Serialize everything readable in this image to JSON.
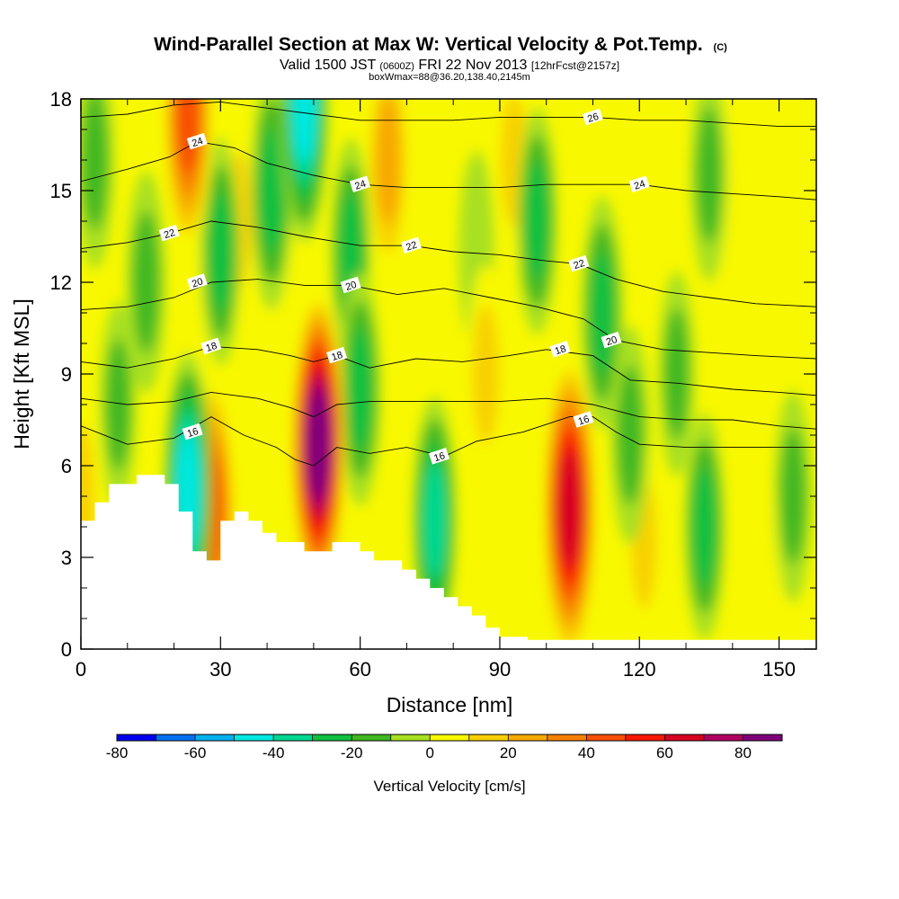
{
  "chart_data": {
    "type": "heatmap",
    "title": "Wind-Parallel Section at Max W: Vertical Velocity & Pot.Temp.",
    "title_mark": "(C)",
    "subtitle_parts": [
      "Valid 1500 JST",
      "(0600Z)",
      "FRI 22 Nov 2013",
      "[12hrFcst@2157z]"
    ],
    "subtitle2": "boxWmax=88@36.20,138.40,2145m",
    "xlabel": "Distance [nm]",
    "ylabel": "Height [Kft MSL]",
    "xlim": [
      0,
      158
    ],
    "ylim": [
      0,
      18
    ],
    "x_ticks": [
      0,
      30,
      60,
      90,
      120,
      150
    ],
    "y_ticks": [
      0,
      3,
      6,
      9,
      12,
      15,
      18
    ],
    "x_tick_labels": [
      "0",
      "30",
      "60",
      "90",
      "120",
      "150"
    ],
    "y_tick_labels": [
      "0",
      "3",
      "6",
      "9",
      "12",
      "15",
      "18"
    ],
    "colorbar": {
      "label": "Vertical Velocity [cm/s]",
      "levels": [
        -80,
        -70,
        -60,
        -50,
        -40,
        -30,
        -20,
        -10,
        0,
        10,
        20,
        30,
        40,
        50,
        60,
        70,
        80,
        90
      ],
      "tick_values": [
        -80,
        -60,
        -40,
        -20,
        0,
        20,
        40,
        60,
        80
      ],
      "tick_labels": [
        "-80",
        "-60",
        "-40",
        "-20",
        "0",
        "20",
        "40",
        "60",
        "80"
      ],
      "colors": [
        "#0000f0",
        "#0070f0",
        "#00b0f0",
        "#00e8e0",
        "#00d890",
        "#10c040",
        "#40b820",
        "#a8e020",
        "#f8f800",
        "#f8d000",
        "#f8a800",
        "#f88000",
        "#f85000",
        "#f81800",
        "#d80020",
        "#b00060",
        "#80007a"
      ]
    },
    "vertical_velocity_cores": [
      {
        "x": 51,
        "y": 6.7,
        "w": 88
      },
      {
        "x": 105,
        "y": 4.6,
        "w": 62
      },
      {
        "x": 23,
        "y": 17.5,
        "w": 48
      },
      {
        "x": 34,
        "y": 14,
        "w": 15
      },
      {
        "x": 66,
        "y": 16,
        "w": 30
      },
      {
        "x": 28,
        "y": 4.5,
        "w": 45
      },
      {
        "x": 87,
        "y": 9,
        "w": 18
      },
      {
        "x": 121,
        "y": 3.5,
        "w": 12
      },
      {
        "x": 147,
        "y": 2,
        "w": 8
      },
      {
        "x": 0,
        "y": 5,
        "w": 20
      },
      {
        "x": 93,
        "y": 16,
        "w": 14
      },
      {
        "x": 140,
        "y": 15,
        "w": 10
      },
      {
        "x": 44,
        "y": 12,
        "w": 5
      },
      {
        "x": 25,
        "y": 10,
        "w": 8
      },
      {
        "x": 23,
        "y": 5.2,
        "w": -45
      },
      {
        "x": 48,
        "y": 17.8,
        "w": -45
      },
      {
        "x": 76,
        "y": 4.2,
        "w": -32
      },
      {
        "x": 60,
        "y": 8.5,
        "w": -25
      },
      {
        "x": 30,
        "y": 13,
        "w": -22
      },
      {
        "x": 41,
        "y": 15,
        "w": -28
      },
      {
        "x": 58,
        "y": 13,
        "w": -22
      },
      {
        "x": 14,
        "y": 12,
        "w": -20
      },
      {
        "x": 3,
        "y": 16,
        "w": -18
      },
      {
        "x": 98,
        "y": 14,
        "w": -22
      },
      {
        "x": 112,
        "y": 11,
        "w": -25
      },
      {
        "x": 118,
        "y": 7,
        "w": -18
      },
      {
        "x": 135,
        "y": 15.5,
        "w": -15
      },
      {
        "x": 134,
        "y": 4,
        "w": -22
      },
      {
        "x": 153,
        "y": 5,
        "w": -15
      },
      {
        "x": 128,
        "y": 9,
        "w": -12
      },
      {
        "x": 85,
        "y": 13,
        "w": -10
      },
      {
        "x": 8,
        "y": 8,
        "w": -12
      }
    ],
    "terrain_surface": [
      [
        0,
        4.2
      ],
      [
        3,
        4.2
      ],
      [
        3,
        4.8
      ],
      [
        6,
        4.8
      ],
      [
        6,
        5.4
      ],
      [
        12,
        5.4
      ],
      [
        12,
        5.7
      ],
      [
        18,
        5.7
      ],
      [
        18,
        5.4
      ],
      [
        21,
        5.4
      ],
      [
        21,
        4.5
      ],
      [
        24,
        4.5
      ],
      [
        24,
        3.2
      ],
      [
        27,
        3.2
      ],
      [
        27,
        2.9
      ],
      [
        30,
        2.9
      ],
      [
        30,
        4.2
      ],
      [
        33,
        4.2
      ],
      [
        33,
        4.5
      ],
      [
        36,
        4.5
      ],
      [
        36,
        4.2
      ],
      [
        39,
        4.2
      ],
      [
        39,
        3.8
      ],
      [
        42,
        3.8
      ],
      [
        42,
        3.5
      ],
      [
        48,
        3.5
      ],
      [
        48,
        3.2
      ],
      [
        54,
        3.2
      ],
      [
        54,
        3.5
      ],
      [
        60,
        3.5
      ],
      [
        60,
        3.2
      ],
      [
        63,
        3.2
      ],
      [
        63,
        2.9
      ],
      [
        69,
        2.9
      ],
      [
        69,
        2.6
      ],
      [
        72,
        2.6
      ],
      [
        72,
        2.3
      ],
      [
        75,
        2.3
      ],
      [
        75,
        2.0
      ],
      [
        78,
        2.0
      ],
      [
        78,
        1.7
      ],
      [
        81,
        1.7
      ],
      [
        81,
        1.4
      ],
      [
        84,
        1.4
      ],
      [
        84,
        1.1
      ],
      [
        87,
        1.1
      ],
      [
        87,
        0.7
      ],
      [
        90,
        0.7
      ],
      [
        90,
        0.4
      ],
      [
        96,
        0.4
      ],
      [
        96,
        0.3
      ],
      [
        158,
        0.3
      ]
    ],
    "potential_temperature_contours": [
      {
        "level": "16",
        "labels": [
          {
            "x": 24,
            "y": 7.1
          },
          {
            "x": 77,
            "y": 6.3
          },
          {
            "x": 108,
            "y": 7.5
          }
        ],
        "points": [
          [
            0,
            7.3
          ],
          [
            10,
            6.7
          ],
          [
            20,
            6.9
          ],
          [
            28,
            7.6
          ],
          [
            35,
            7.0
          ],
          [
            42,
            6.6
          ],
          [
            46,
            6.2
          ],
          [
            50,
            6.0
          ],
          [
            55,
            6.6
          ],
          [
            62,
            6.4
          ],
          [
            70,
            6.6
          ],
          [
            78,
            6.3
          ],
          [
            85,
            6.8
          ],
          [
            95,
            7.1
          ],
          [
            105,
            7.6
          ],
          [
            110,
            7.6
          ],
          [
            115,
            7.1
          ],
          [
            120,
            6.7
          ],
          [
            130,
            6.6
          ],
          [
            140,
            6.6
          ],
          [
            150,
            6.6
          ],
          [
            158,
            6.6
          ]
        ]
      },
      {
        "level": "",
        "labels": [],
        "points": [
          [
            0,
            8.2
          ],
          [
            10,
            8.0
          ],
          [
            20,
            8.1
          ],
          [
            28,
            8.4
          ],
          [
            38,
            8.2
          ],
          [
            45,
            7.9
          ],
          [
            50,
            7.6
          ],
          [
            55,
            8.0
          ],
          [
            62,
            8.1
          ],
          [
            72,
            8.1
          ],
          [
            82,
            8.1
          ],
          [
            90,
            8.1
          ],
          [
            100,
            8.2
          ],
          [
            110,
            8.0
          ],
          [
            120,
            7.6
          ],
          [
            130,
            7.5
          ],
          [
            140,
            7.5
          ],
          [
            150,
            7.3
          ],
          [
            158,
            7.2
          ]
        ]
      },
      {
        "level": "18",
        "labels": [
          {
            "x": 28,
            "y": 9.9
          },
          {
            "x": 55,
            "y": 9.6
          },
          {
            "x": 103,
            "y": 9.8
          }
        ],
        "points": [
          [
            0,
            9.4
          ],
          [
            10,
            9.2
          ],
          [
            20,
            9.5
          ],
          [
            28,
            9.9
          ],
          [
            38,
            9.8
          ],
          [
            45,
            9.6
          ],
          [
            50,
            9.4
          ],
          [
            55,
            9.6
          ],
          [
            62,
            9.2
          ],
          [
            72,
            9.5
          ],
          [
            82,
            9.4
          ],
          [
            92,
            9.6
          ],
          [
            100,
            9.8
          ],
          [
            110,
            9.6
          ],
          [
            118,
            8.8
          ],
          [
            128,
            8.7
          ],
          [
            140,
            8.5
          ],
          [
            150,
            8.4
          ],
          [
            158,
            8.3
          ]
        ]
      },
      {
        "level": "20",
        "labels": [
          {
            "x": 25,
            "y": 12.0
          },
          {
            "x": 58,
            "y": 11.9
          },
          {
            "x": 114,
            "y": 10.1
          }
        ],
        "points": [
          [
            0,
            11.1
          ],
          [
            10,
            11.2
          ],
          [
            20,
            11.5
          ],
          [
            28,
            12.0
          ],
          [
            38,
            12.1
          ],
          [
            48,
            11.9
          ],
          [
            58,
            11.9
          ],
          [
            68,
            11.6
          ],
          [
            78,
            11.8
          ],
          [
            88,
            11.5
          ],
          [
            98,
            11.2
          ],
          [
            108,
            10.8
          ],
          [
            115,
            10.1
          ],
          [
            125,
            9.8
          ],
          [
            135,
            9.7
          ],
          [
            145,
            9.6
          ],
          [
            158,
            9.5
          ]
        ]
      },
      {
        "level": "22",
        "labels": [
          {
            "x": 19,
            "y": 13.6
          },
          {
            "x": 71,
            "y": 13.2
          },
          {
            "x": 107,
            "y": 12.6
          }
        ],
        "points": [
          [
            0,
            13.1
          ],
          [
            10,
            13.3
          ],
          [
            19,
            13.6
          ],
          [
            28,
            14.0
          ],
          [
            38,
            13.8
          ],
          [
            48,
            13.5
          ],
          [
            60,
            13.2
          ],
          [
            71,
            13.2
          ],
          [
            80,
            13.0
          ],
          [
            90,
            12.9
          ],
          [
            100,
            12.7
          ],
          [
            107,
            12.6
          ],
          [
            115,
            12.1
          ],
          [
            125,
            11.7
          ],
          [
            135,
            11.5
          ],
          [
            145,
            11.3
          ],
          [
            158,
            11.2
          ]
        ]
      },
      {
        "level": "24",
        "labels": [
          {
            "x": 25,
            "y": 16.6
          },
          {
            "x": 60,
            "y": 15.2
          },
          {
            "x": 120,
            "y": 15.2
          }
        ],
        "points": [
          [
            0,
            15.3
          ],
          [
            10,
            15.7
          ],
          [
            19,
            16.1
          ],
          [
            25,
            16.6
          ],
          [
            33,
            16.4
          ],
          [
            40,
            15.9
          ],
          [
            50,
            15.5
          ],
          [
            60,
            15.2
          ],
          [
            70,
            15.1
          ],
          [
            80,
            15.1
          ],
          [
            90,
            15.1
          ],
          [
            100,
            15.2
          ],
          [
            110,
            15.2
          ],
          [
            120,
            15.2
          ],
          [
            130,
            15.0
          ],
          [
            140,
            14.9
          ],
          [
            150,
            14.8
          ],
          [
            158,
            14.7
          ]
        ]
      },
      {
        "level": "26",
        "labels": [
          {
            "x": 110,
            "y": 17.4
          }
        ],
        "points": [
          [
            0,
            17.4
          ],
          [
            10,
            17.5
          ],
          [
            20,
            17.8
          ],
          [
            30,
            17.9
          ],
          [
            40,
            17.7
          ],
          [
            50,
            17.5
          ],
          [
            60,
            17.3
          ],
          [
            70,
            17.3
          ],
          [
            80,
            17.3
          ],
          [
            90,
            17.4
          ],
          [
            100,
            17.4
          ],
          [
            110,
            17.4
          ],
          [
            120,
            17.3
          ],
          [
            130,
            17.3
          ],
          [
            140,
            17.2
          ],
          [
            150,
            17.1
          ],
          [
            158,
            17.1
          ]
        ]
      }
    ]
  }
}
